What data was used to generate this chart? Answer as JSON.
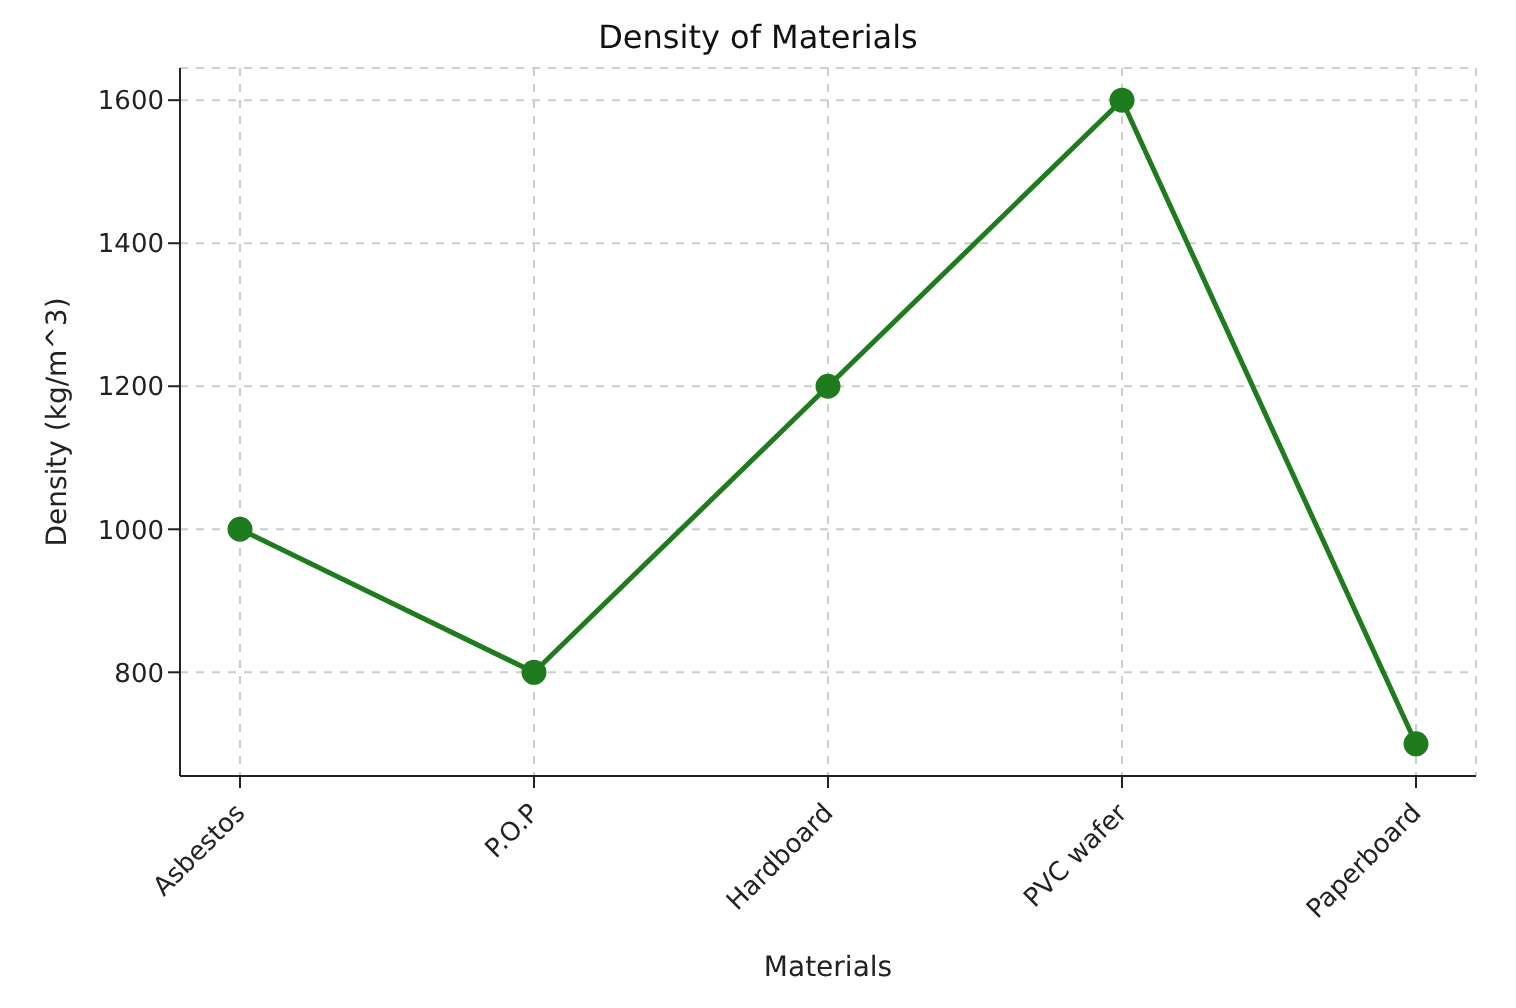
{
  "chart_data": {
    "type": "line",
    "title": "Density of Materials",
    "xlabel": "Materials",
    "ylabel": "Density (kg/m^3)",
    "categories": [
      "Asbestos",
      "P.O.P",
      "Hardboard",
      "PVC wafer",
      "Paperboard"
    ],
    "series": [
      {
        "color": "#1e7b1e",
        "values": [
          1000,
          800,
          1200,
          1600,
          700
        ]
      }
    ],
    "ylim": [
      655,
      1645
    ],
    "yticks": [
      800,
      1000,
      1200,
      1400,
      1600
    ],
    "grid": true,
    "marker": "circle",
    "line_style": "solid"
  }
}
